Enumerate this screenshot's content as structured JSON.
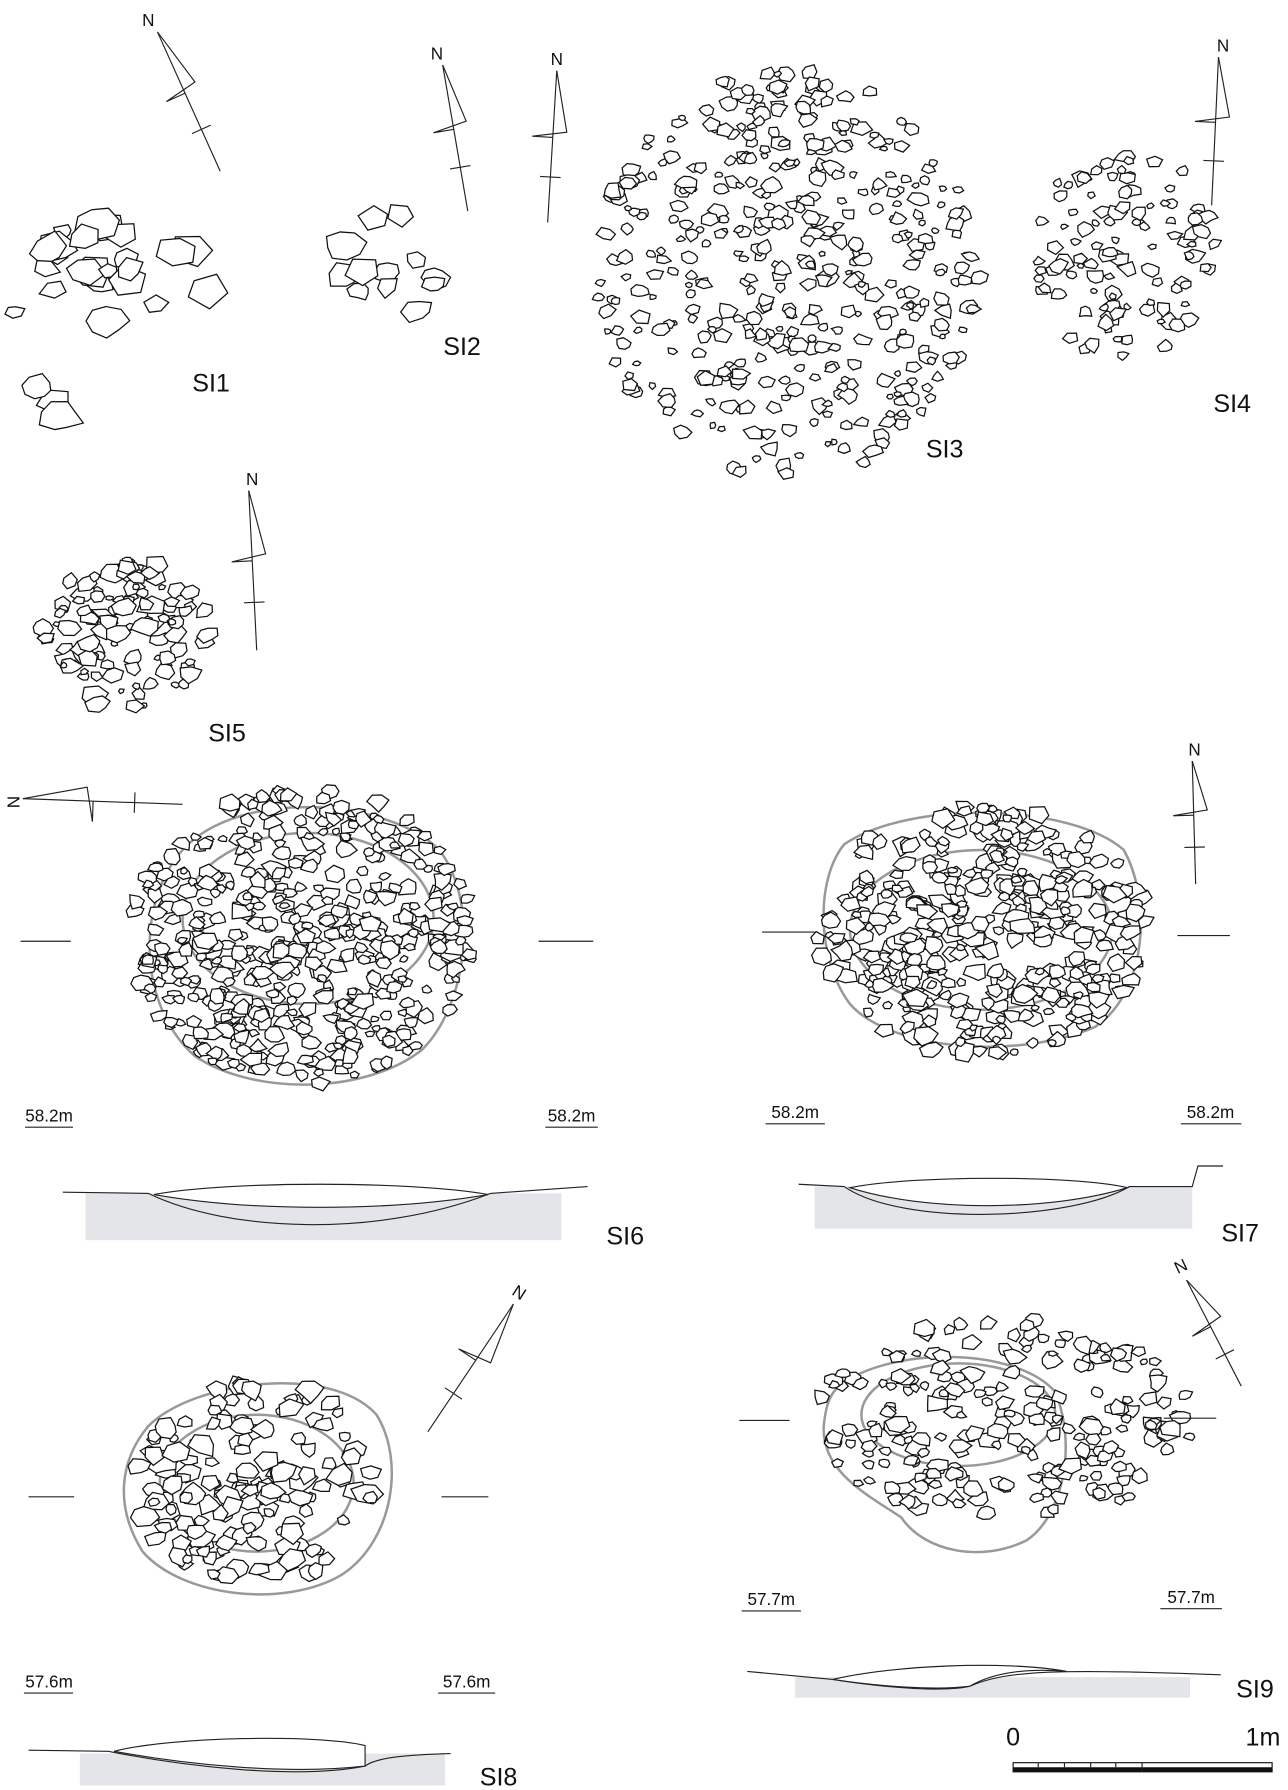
{
  "plans": [
    {
      "label": "SI1",
      "north": "N"
    },
    {
      "label": "SI2",
      "north": "N"
    },
    {
      "label": "SI3",
      "north": "N"
    },
    {
      "label": "SI4",
      "north": "N"
    },
    {
      "label": "SI5",
      "north": "N"
    }
  ],
  "sections": [
    {
      "label": "SI6",
      "north": "N",
      "elevation_left": "58.2m",
      "elevation_right": "58.2m"
    },
    {
      "label": "SI7",
      "north": "N",
      "elevation_left": "58.2m",
      "elevation_right": "58.2m"
    },
    {
      "label": "SI8",
      "north": "N",
      "elevation_left": "57.6m",
      "elevation_right": "57.6m"
    },
    {
      "label": "SI9",
      "north": "N",
      "elevation_left": "57.7m",
      "elevation_right": "57.7m"
    }
  ],
  "scale_bar": {
    "start": "0",
    "end": "1m"
  }
}
